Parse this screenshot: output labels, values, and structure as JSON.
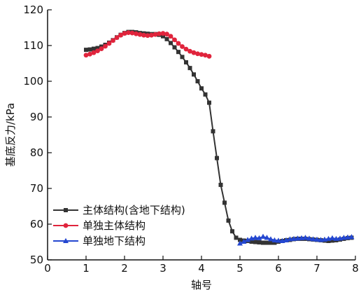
{
  "chart_data": {
    "type": "line",
    "xlabel": "轴号",
    "ylabel": "基底反力/kPa",
    "xlim": [
      0,
      8
    ],
    "ylim": [
      50,
      120
    ],
    "xticks": [
      "0",
      "1",
      "2",
      "3",
      "4",
      "5",
      "6",
      "7",
      "8"
    ],
    "yticks": [
      "50",
      "60",
      "70",
      "80",
      "90",
      "100",
      "110",
      "120"
    ],
    "grid": false,
    "legend_position": "bottom-left",
    "series": [
      {
        "name": "主体结构(含地下结构)",
        "color": "#333333",
        "marker": "square",
        "points": [
          [
            1.0,
            108.8
          ],
          [
            1.1,
            108.9
          ],
          [
            1.2,
            109.1
          ],
          [
            1.3,
            109.3
          ],
          [
            1.4,
            109.7
          ],
          [
            1.5,
            110.2
          ],
          [
            1.6,
            110.8
          ],
          [
            1.7,
            111.5
          ],
          [
            1.8,
            112.3
          ],
          [
            1.9,
            113.0
          ],
          [
            2.0,
            113.5
          ],
          [
            2.1,
            113.8
          ],
          [
            2.2,
            113.8
          ],
          [
            2.3,
            113.7
          ],
          [
            2.4,
            113.5
          ],
          [
            2.5,
            113.4
          ],
          [
            2.6,
            113.3
          ],
          [
            2.7,
            113.2
          ],
          [
            2.8,
            113.2
          ],
          [
            2.9,
            113.0
          ],
          [
            3.0,
            112.6
          ],
          [
            3.1,
            111.8
          ],
          [
            3.2,
            110.7
          ],
          [
            3.3,
            109.5
          ],
          [
            3.4,
            108.2
          ],
          [
            3.5,
            106.8
          ],
          [
            3.6,
            105.3
          ],
          [
            3.7,
            103.7
          ],
          [
            3.8,
            101.9
          ],
          [
            3.9,
            100.0
          ],
          [
            4.0,
            98.0
          ],
          [
            4.1,
            96.3
          ],
          [
            4.2,
            94.0
          ],
          [
            4.3,
            86.0
          ],
          [
            4.4,
            78.5
          ],
          [
            4.5,
            71.0
          ],
          [
            4.6,
            66.0
          ],
          [
            4.7,
            61.0
          ],
          [
            4.8,
            58.0
          ],
          [
            4.9,
            56.2
          ],
          [
            5.0,
            55.6
          ],
          [
            5.1,
            55.4
          ],
          [
            5.2,
            55.3
          ],
          [
            5.3,
            55.1
          ],
          [
            5.4,
            55.0
          ],
          [
            5.5,
            54.9
          ],
          [
            5.6,
            54.8
          ],
          [
            5.7,
            54.8
          ],
          [
            5.8,
            54.8
          ],
          [
            5.9,
            54.8
          ],
          [
            6.0,
            55.1
          ],
          [
            6.1,
            55.3
          ],
          [
            6.2,
            55.5
          ],
          [
            6.3,
            55.6
          ],
          [
            6.4,
            55.8
          ],
          [
            6.5,
            55.9
          ],
          [
            6.6,
            55.9
          ],
          [
            6.7,
            55.9
          ],
          [
            6.8,
            55.8
          ],
          [
            6.9,
            55.7
          ],
          [
            7.0,
            55.6
          ],
          [
            7.1,
            55.5
          ],
          [
            7.2,
            55.4
          ],
          [
            7.3,
            55.3
          ],
          [
            7.4,
            55.4
          ],
          [
            7.5,
            55.5
          ],
          [
            7.6,
            55.7
          ],
          [
            7.7,
            55.9
          ],
          [
            7.8,
            56.1
          ],
          [
            7.9,
            56.2
          ]
        ]
      },
      {
        "name": "单独主体结构",
        "color": "#e0243c",
        "marker": "circle",
        "points": [
          [
            1.0,
            107.3
          ],
          [
            1.1,
            107.6
          ],
          [
            1.2,
            108.0
          ],
          [
            1.3,
            108.5
          ],
          [
            1.4,
            109.1
          ],
          [
            1.5,
            109.8
          ],
          [
            1.6,
            110.6
          ],
          [
            1.7,
            111.4
          ],
          [
            1.8,
            112.2
          ],
          [
            1.9,
            112.9
          ],
          [
            2.0,
            113.4
          ],
          [
            2.1,
            113.6
          ],
          [
            2.2,
            113.5
          ],
          [
            2.3,
            113.3
          ],
          [
            2.4,
            113.1
          ],
          [
            2.5,
            112.9
          ],
          [
            2.6,
            112.8
          ],
          [
            2.7,
            112.9
          ],
          [
            2.8,
            113.1
          ],
          [
            2.9,
            113.3
          ],
          [
            3.0,
            113.4
          ],
          [
            3.1,
            113.2
          ],
          [
            3.2,
            112.6
          ],
          [
            3.3,
            111.6
          ],
          [
            3.4,
            110.6
          ],
          [
            3.5,
            109.7
          ],
          [
            3.6,
            109.0
          ],
          [
            3.7,
            108.4
          ],
          [
            3.8,
            108.0
          ],
          [
            3.9,
            107.7
          ],
          [
            4.0,
            107.5
          ],
          [
            4.1,
            107.3
          ],
          [
            4.2,
            107.0
          ]
        ]
      },
      {
        "name": "单独地下结构",
        "color": "#2447d0",
        "marker": "triangle",
        "points": [
          [
            5.0,
            54.6
          ],
          [
            5.1,
            55.1
          ],
          [
            5.2,
            55.6
          ],
          [
            5.3,
            56.0
          ],
          [
            5.4,
            56.2
          ],
          [
            5.5,
            56.1
          ],
          [
            5.6,
            56.5
          ],
          [
            5.7,
            56.2
          ],
          [
            5.8,
            55.8
          ],
          [
            5.9,
            55.5
          ],
          [
            6.0,
            55.4
          ],
          [
            6.1,
            55.3
          ],
          [
            6.2,
            55.5
          ],
          [
            6.3,
            55.8
          ],
          [
            6.4,
            55.9
          ],
          [
            6.5,
            56.0
          ],
          [
            6.6,
            56.1
          ],
          [
            6.7,
            56.2
          ],
          [
            6.8,
            56.0
          ],
          [
            6.9,
            55.8
          ],
          [
            7.0,
            55.7
          ],
          [
            7.1,
            55.6
          ],
          [
            7.2,
            55.7
          ],
          [
            7.3,
            55.9
          ],
          [
            7.4,
            56.1
          ],
          [
            7.5,
            55.9
          ],
          [
            7.6,
            56.0
          ],
          [
            7.7,
            56.2
          ],
          [
            7.8,
            56.3
          ],
          [
            7.9,
            56.4
          ]
        ]
      }
    ]
  }
}
